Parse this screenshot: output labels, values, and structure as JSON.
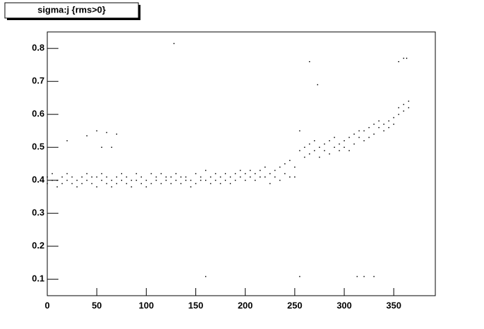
{
  "chart_data": {
    "type": "scatter",
    "title": "sigma:j {rms>0}",
    "color": "#000000",
    "xlim": [
      0,
      392
    ],
    "ylim": [
      0.05,
      0.85
    ],
    "xticks": [
      0,
      50,
      100,
      150,
      200,
      250,
      300,
      350
    ],
    "yticks": [
      0.1,
      0.2,
      0.3,
      0.4,
      0.5,
      0.6,
      0.7,
      0.8
    ],
    "x": [
      0,
      0,
      5,
      5,
      10,
      10,
      15,
      15,
      20,
      20,
      25,
      25,
      30,
      30,
      35,
      35,
      40,
      40,
      45,
      45,
      50,
      50,
      55,
      55,
      60,
      60,
      65,
      65,
      70,
      70,
      75,
      75,
      80,
      80,
      85,
      85,
      90,
      90,
      95,
      95,
      100,
      100,
      105,
      105,
      110,
      110,
      115,
      115,
      120,
      120,
      125,
      125,
      130,
      130,
      135,
      135,
      140,
      140,
      145,
      145,
      150,
      150,
      155,
      155,
      160,
      160,
      165,
      165,
      170,
      170,
      175,
      175,
      180,
      180,
      185,
      185,
      190,
      190,
      195,
      195,
      200,
      200,
      205,
      205,
      210,
      210,
      215,
      215,
      220,
      220,
      225,
      225,
      230,
      230,
      235,
      235,
      240,
      240,
      245,
      245,
      250,
      250,
      255,
      255,
      260,
      260,
      265,
      265,
      270,
      270,
      275,
      275,
      280,
      280,
      285,
      285,
      290,
      290,
      295,
      295,
      300,
      300,
      305,
      305,
      310,
      310,
      315,
      315,
      320,
      320,
      325,
      325,
      330,
      330,
      335,
      335,
      340,
      340,
      345,
      345,
      350,
      350,
      355,
      355,
      360,
      360,
      365,
      365,
      128,
      160,
      255,
      313,
      320,
      330,
      40,
      50,
      60,
      70,
      55,
      65,
      20,
      265,
      355,
      360,
      363,
      273
    ],
    "values": [
      0.41,
      0.39,
      0.42,
      0.4,
      0.4,
      0.38,
      0.41,
      0.39,
      0.4,
      0.42,
      0.39,
      0.41,
      0.4,
      0.38,
      0.41,
      0.39,
      0.4,
      0.42,
      0.39,
      0.41,
      0.41,
      0.38,
      0.4,
      0.42,
      0.39,
      0.41,
      0.4,
      0.38,
      0.41,
      0.39,
      0.4,
      0.42,
      0.39,
      0.41,
      0.4,
      0.38,
      0.42,
      0.4,
      0.41,
      0.39,
      0.4,
      0.38,
      0.42,
      0.39,
      0.41,
      0.4,
      0.39,
      0.42,
      0.4,
      0.41,
      0.41,
      0.39,
      0.4,
      0.42,
      0.39,
      0.41,
      0.41,
      0.4,
      0.4,
      0.38,
      0.42,
      0.39,
      0.41,
      0.4,
      0.4,
      0.43,
      0.39,
      0.41,
      0.4,
      0.42,
      0.41,
      0.39,
      0.4,
      0.42,
      0.41,
      0.39,
      0.42,
      0.4,
      0.41,
      0.43,
      0.42,
      0.4,
      0.41,
      0.43,
      0.42,
      0.4,
      0.43,
      0.41,
      0.41,
      0.44,
      0.42,
      0.39,
      0.43,
      0.41,
      0.44,
      0.4,
      0.45,
      0.42,
      0.46,
      0.41,
      0.44,
      0.41,
      0.49,
      0.55,
      0.5,
      0.47,
      0.51,
      0.48,
      0.49,
      0.52,
      0.5,
      0.47,
      0.51,
      0.49,
      0.52,
      0.48,
      0.5,
      0.53,
      0.51,
      0.49,
      0.52,
      0.5,
      0.53,
      0.49,
      0.54,
      0.51,
      0.53,
      0.55,
      0.55,
      0.52,
      0.56,
      0.53,
      0.54,
      0.57,
      0.56,
      0.58,
      0.57,
      0.55,
      0.58,
      0.56,
      0.59,
      0.57,
      0.6,
      0.62,
      0.63,
      0.61,
      0.64,
      0.62,
      0.815,
      0.108,
      0.108,
      0.108,
      0.108,
      0.108,
      0.535,
      0.55,
      0.545,
      0.54,
      0.5,
      0.5,
      0.52,
      0.76,
      0.76,
      0.77,
      0.77,
      0.69
    ]
  }
}
